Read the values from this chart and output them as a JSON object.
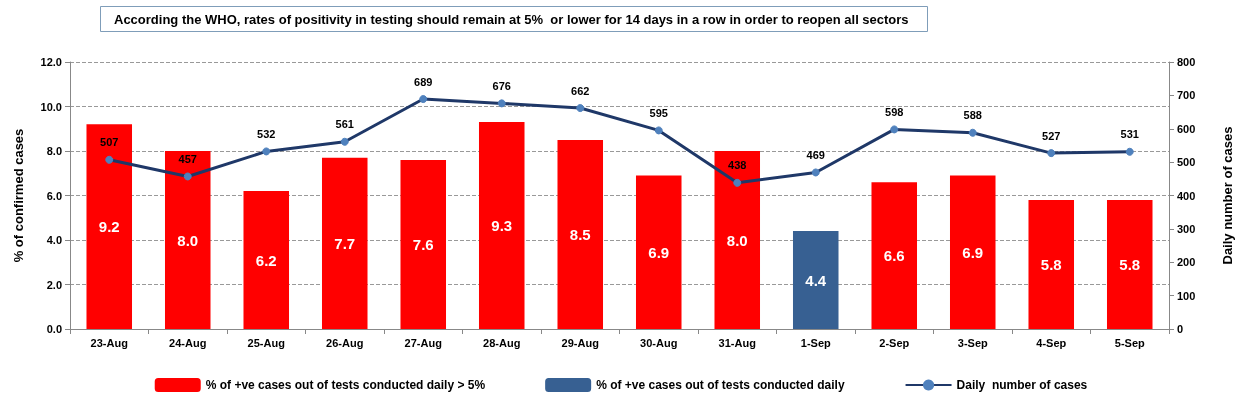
{
  "chart_data": {
    "type": "bar",
    "title": "According the WHO, rates of positivity in testing should remain at 5%  or lower for 14 days in a row in order to reopen all sectors",
    "ylabel": "% of confirmed cases",
    "y2label": "Daily number of cases",
    "categories": [
      "23-Aug",
      "24-Aug",
      "25-Aug",
      "26-Aug",
      "27-Aug",
      "28-Aug",
      "29-Aug",
      "30-Aug",
      "31-Aug",
      "1-Sep",
      "2-Sep",
      "3-Sep",
      "4-Sep",
      "5-Sep"
    ],
    "series": [
      {
        "name": "% of +ve cases out of tests conducted daily > 5%",
        "color": "#ff0000",
        "values": [
          9.2,
          8.0,
          6.2,
          7.7,
          7.6,
          9.3,
          8.5,
          6.9,
          8.0,
          null,
          6.6,
          6.9,
          5.8,
          5.8
        ],
        "value_labels": [
          "9.2",
          "8.0",
          "6.2",
          "7.7",
          "7.6",
          "9.3",
          "8.5",
          "6.9",
          "8.0",
          null,
          "6.6",
          "6.9",
          "5.8",
          "5.8"
        ]
      },
      {
        "name": "% of +ve cases out of tests conducted daily",
        "color": "#376092",
        "values": [
          null,
          null,
          null,
          null,
          null,
          null,
          null,
          null,
          null,
          4.4,
          null,
          null,
          null,
          null
        ],
        "value_labels": [
          null,
          null,
          null,
          null,
          null,
          null,
          null,
          null,
          null,
          "4.4",
          null,
          null,
          null,
          null
        ]
      },
      {
        "name": "Daily  number of cases",
        "type": "line",
        "axis": "y2",
        "color": "#1f3868",
        "marker": "circle",
        "values": [
          507,
          457,
          532,
          561,
          689,
          676,
          662,
          595,
          438,
          469,
          598,
          588,
          527,
          531
        ]
      }
    ],
    "stacked": true,
    "data_labels": true,
    "ylim": [
      0,
      12
    ],
    "yticks": [
      {
        "value": 0,
        "label": "0.0"
      },
      {
        "value": 2,
        "label": "2.0"
      },
      {
        "value": 4,
        "label": "4.0"
      },
      {
        "value": 6,
        "label": "6.0"
      },
      {
        "value": 8,
        "label": "8.0"
      },
      {
        "value": 10,
        "label": "10.0"
      },
      {
        "value": 12,
        "label": "12.0"
      }
    ],
    "y2lim": [
      0,
      800
    ],
    "y2ticks": [
      0,
      100,
      200,
      300,
      400,
      500,
      600,
      700,
      800
    ],
    "grid": "y",
    "legend": "bottom"
  }
}
